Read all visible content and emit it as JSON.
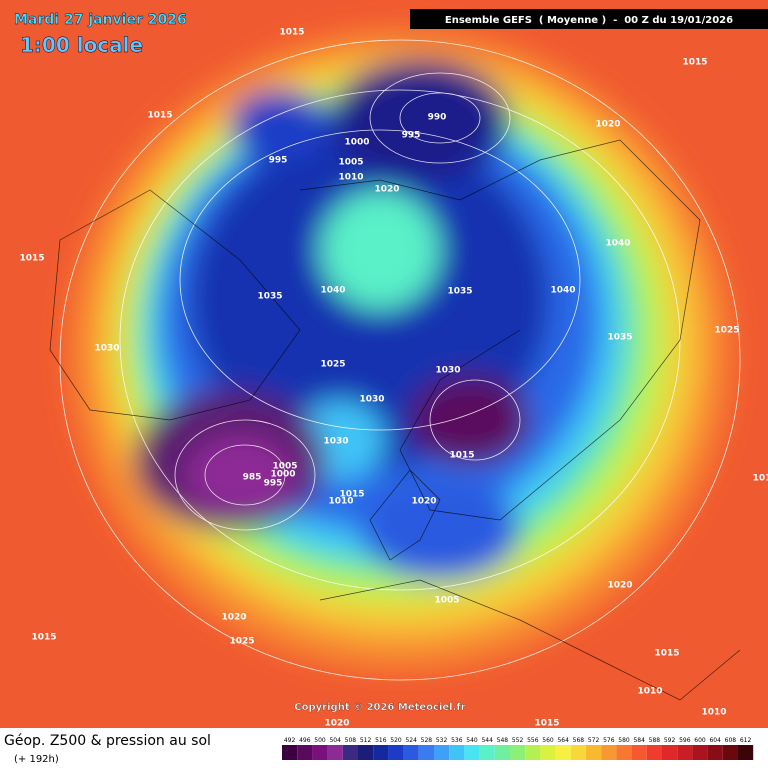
{
  "header": {
    "date": "Mardi 27 janvier 2026",
    "time": "1:00 locale",
    "model": "Ensemble GEFS  ( Moyenne )  -  00 Z du 19/01/2026"
  },
  "map": {
    "copyright": "Copyright © 2026 Meteociel.fr",
    "pressure_labels": [
      "1015",
      "1015",
      "1015",
      "990",
      "1020",
      "995",
      "995",
      "1000",
      "1005",
      "1010",
      "1020",
      "1015",
      "1040",
      "1040",
      "1035",
      "1040",
      "1035",
      "1025",
      "1035",
      "1030",
      "1025",
      "1030",
      "1030",
      "1030",
      "1015",
      "1005",
      "1000",
      "995",
      "985",
      "1015",
      "1010",
      "1020",
      "1020",
      "1005",
      "1015",
      "1020",
      "1025",
      "1015",
      "1010",
      "1010",
      "1020",
      "1015",
      "101"
    ]
  },
  "footer": {
    "title": "Géop. Z500 & pression au sol",
    "lead": "(+ 192h)"
  },
  "scale": {
    "values": [
      492,
      496,
      500,
      504,
      508,
      512,
      516,
      520,
      524,
      528,
      532,
      536,
      540,
      544,
      548,
      552,
      556,
      560,
      564,
      568,
      572,
      576,
      580,
      584,
      588,
      592,
      596,
      600,
      604,
      608,
      612
    ],
    "colors": [
      "#3c0040",
      "#5a0a5e",
      "#7a107c",
      "#8e2a96",
      "#3a2a80",
      "#1a1e7a",
      "#1428a0",
      "#1c3cc8",
      "#2a5ae0",
      "#3a7cf0",
      "#3ea0f8",
      "#40c4f8",
      "#48e4f0",
      "#5af0c8",
      "#6ef0a0",
      "#8cf078",
      "#b4f050",
      "#dcf040",
      "#f8f040",
      "#f8d838",
      "#f8b830",
      "#f89830",
      "#f87830",
      "#f85830",
      "#f03c2c",
      "#e0282a",
      "#c81e24",
      "#aa141e",
      "#8a0c16",
      "#6a0810",
      "#3a0408"
    ]
  }
}
